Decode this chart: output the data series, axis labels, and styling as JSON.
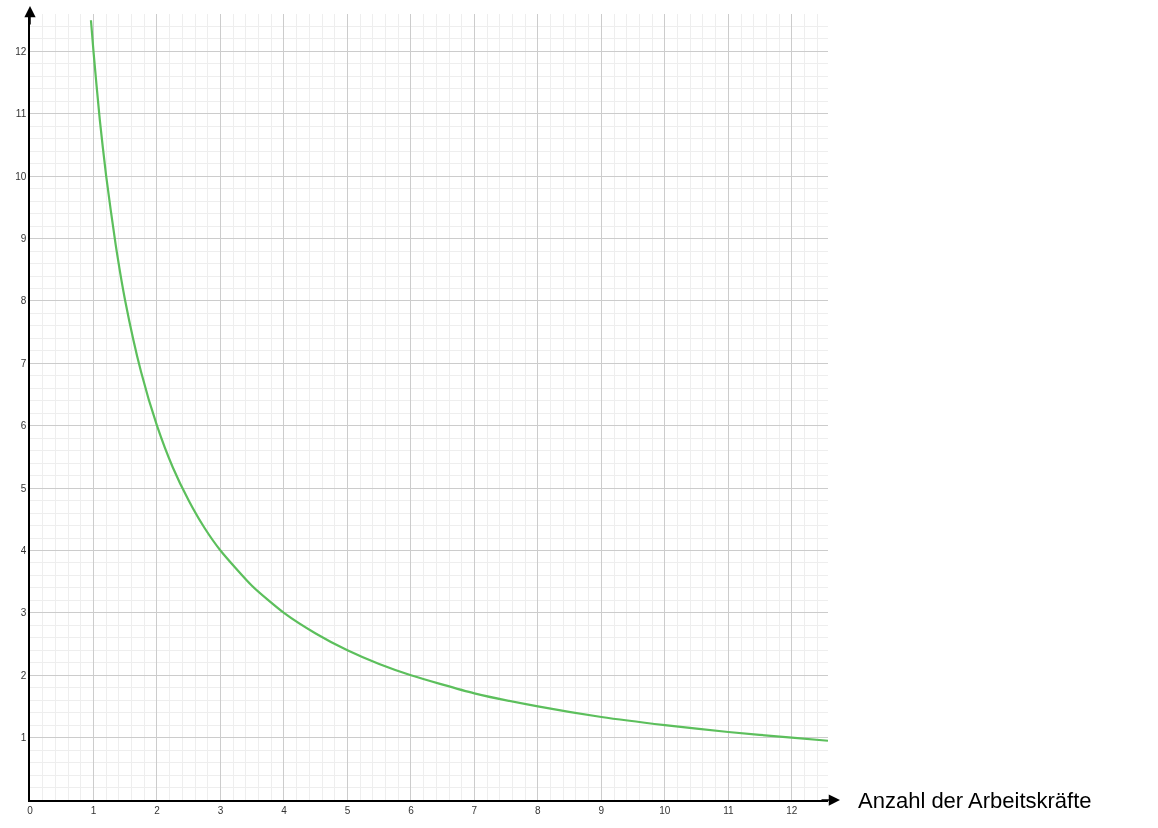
{
  "chart_data": {
    "type": "line",
    "xlabel": "Anzahl der Arbeitskräfte",
    "x": [
      0.96,
      1,
      1.1,
      1.2,
      1.35,
      1.5,
      1.75,
      2,
      2.25,
      2.5,
      2.75,
      3,
      3.5,
      4,
      4.5,
      5,
      5.5,
      6,
      7,
      8,
      9,
      10,
      11,
      12,
      12.57
    ],
    "series": [
      {
        "color": "#5cbf5c",
        "values": [
          12.5,
          12,
          10.9,
          10,
          8.9,
          8,
          6.86,
          6,
          5.33,
          4.8,
          4.36,
          4,
          3.43,
          3,
          2.67,
          2.4,
          2.18,
          2,
          1.71,
          1.5,
          1.33,
          1.2,
          1.09,
          1,
          0.95
        ]
      }
    ],
    "xlim": [
      0,
      12.57
    ],
    "ylim": [
      0,
      12.6
    ],
    "xticks": [
      0,
      1,
      2,
      3,
      4,
      5,
      6,
      7,
      8,
      9,
      10,
      11,
      12
    ],
    "yticks": [
      1,
      2,
      3,
      4,
      5,
      6,
      7,
      8,
      9,
      10,
      11,
      12
    ],
    "grid": true,
    "legend": false,
    "marker": "none",
    "line_style": "solid"
  }
}
